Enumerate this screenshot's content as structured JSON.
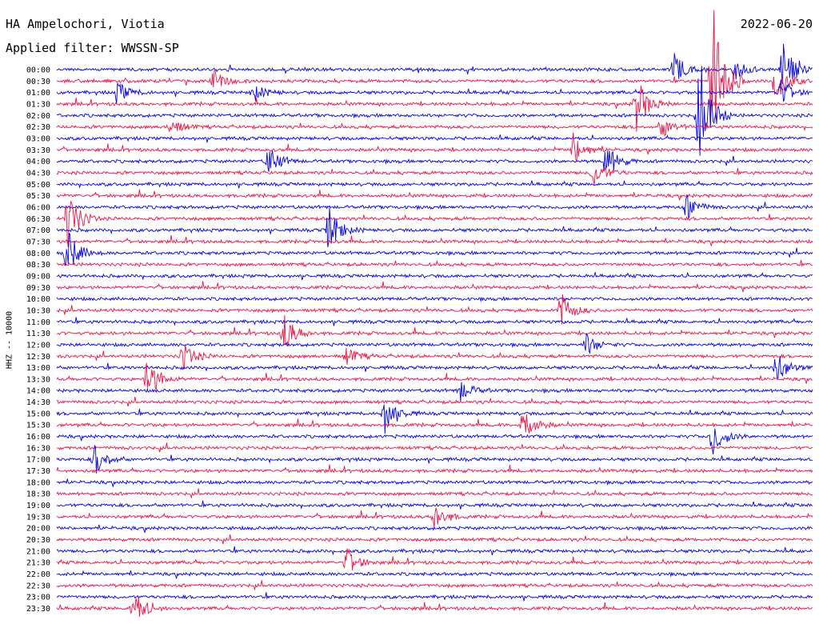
{
  "header": {
    "station": "HA Ampelochori, Viotia",
    "filter_label": "Applied filter:",
    "filter_value": "WWSSN-SP",
    "date": "2022-06-20"
  },
  "colors": {
    "trace_a": "#0000ee",
    "trace_b": "#ee1144",
    "text": "#000000",
    "background": "#ffffff"
  },
  "chart_data": {
    "type": "line",
    "title": "",
    "ylabel": "HHZ -- 10000",
    "xlabel": "",
    "grid": false,
    "legend": "none",
    "row_interval_minutes": 30,
    "series_colors": [
      "#0000ee",
      "#ee1144"
    ],
    "rows": [
      "00:00",
      "00:30",
      "01:00",
      "01:30",
      "02:00",
      "02:30",
      "03:00",
      "03:30",
      "04:00",
      "04:30",
      "05:00",
      "05:30",
      "06:00",
      "06:30",
      "07:00",
      "07:30",
      "08:00",
      "08:30",
      "09:00",
      "09:30",
      "10:00",
      "10:30",
      "11:00",
      "11:30",
      "12:00",
      "12:30",
      "13:00",
      "13:30",
      "14:00",
      "14:30",
      "15:00",
      "15:30",
      "16:00",
      "16:30",
      "17:00",
      "17:30",
      "18:00",
      "18:30",
      "19:00",
      "19:30",
      "20:00",
      "20:30",
      "21:00",
      "21:30",
      "22:00",
      "22:30",
      "23:00",
      "23:30"
    ],
    "events": [
      {
        "row": "00:00",
        "minute": 24.5,
        "amp": 0.9
      },
      {
        "row": "00:00",
        "minute": 26.8,
        "amp": 0.8
      },
      {
        "row": "00:00",
        "minute": 28.8,
        "amp": 1.6
      },
      {
        "row": "00:30",
        "minute": 6.2,
        "amp": 0.7
      },
      {
        "row": "00:30",
        "minute": 26.0,
        "amp": 5.0
      },
      {
        "row": "00:30",
        "minute": 28.5,
        "amp": 1.3
      },
      {
        "row": "01:00",
        "minute": 2.4,
        "amp": 0.6
      },
      {
        "row": "01:00",
        "minute": 7.8,
        "amp": 0.5
      },
      {
        "row": "01:00",
        "minute": 28.7,
        "amp": 0.8
      },
      {
        "row": "01:30",
        "minute": 23.0,
        "amp": 1.5
      },
      {
        "row": "02:00",
        "minute": 25.5,
        "amp": 3.2
      },
      {
        "row": "02:30",
        "minute": 4.5,
        "amp": 0.5
      },
      {
        "row": "02:30",
        "minute": 24.0,
        "amp": 0.6
      },
      {
        "row": "03:30",
        "minute": 20.5,
        "amp": 0.9
      },
      {
        "row": "04:00",
        "minute": 8.4,
        "amp": 0.9
      },
      {
        "row": "04:00",
        "minute": 21.8,
        "amp": 1.0
      },
      {
        "row": "04:30",
        "minute": 21.3,
        "amp": 0.8
      },
      {
        "row": "06:00",
        "minute": 25.0,
        "amp": 0.7
      },
      {
        "row": "06:30",
        "minute": 0.4,
        "amp": 1.8
      },
      {
        "row": "07:00",
        "minute": 10.8,
        "amp": 1.3
      },
      {
        "row": "08:00",
        "minute": 0.4,
        "amp": 1.4
      },
      {
        "row": "10:30",
        "minute": 20.0,
        "amp": 1.0
      },
      {
        "row": "11:30",
        "minute": 9.0,
        "amp": 1.1
      },
      {
        "row": "12:00",
        "minute": 21.0,
        "amp": 0.6
      },
      {
        "row": "12:30",
        "minute": 5.0,
        "amp": 0.8
      },
      {
        "row": "12:30",
        "minute": 11.5,
        "amp": 0.5
      },
      {
        "row": "13:00",
        "minute": 28.5,
        "amp": 1.0
      },
      {
        "row": "13:30",
        "minute": 3.6,
        "amp": 1.2
      },
      {
        "row": "14:00",
        "minute": 16.0,
        "amp": 0.6
      },
      {
        "row": "15:00",
        "minute": 13.0,
        "amp": 1.1
      },
      {
        "row": "15:30",
        "minute": 18.5,
        "amp": 1.0
      },
      {
        "row": "16:00",
        "minute": 26.0,
        "amp": 1.1
      },
      {
        "row": "17:00",
        "minute": 1.5,
        "amp": 0.9
      },
      {
        "row": "19:30",
        "minute": 15.0,
        "amp": 0.7
      },
      {
        "row": "21:30",
        "minute": 11.5,
        "amp": 0.8
      },
      {
        "row": "23:30",
        "minute": 3.0,
        "amp": 1.2
      }
    ]
  }
}
